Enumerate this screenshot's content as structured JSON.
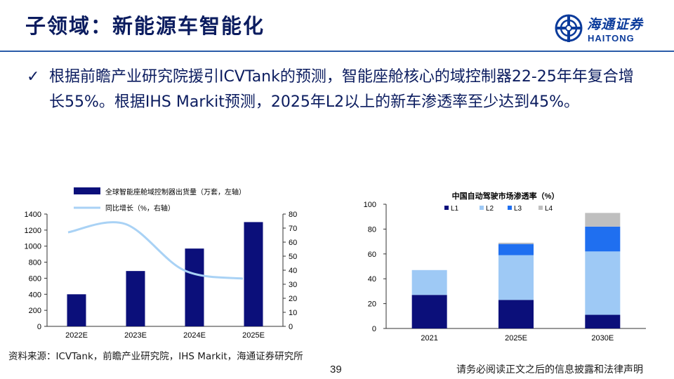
{
  "header": {
    "title": "子领域：新能源车智能化",
    "logo_cn": "海通证券",
    "logo_en": "HAITONG"
  },
  "bullet": {
    "check": "✓",
    "text": "根据前瞻产业研究院援引ICVTank的预测，智能座舱核心的域控制器22-25年年复合增长55%。根据IHS Markit预测，2025年L2以上的新车渗透率至少达到45%。"
  },
  "footer": {
    "source": "资料来源：ICVTank，前瞻产业研究院，IHS Markit，海通证券研究所",
    "page_number": "39",
    "disclaimer": "请务必阅读正文之后的信息披露和法律声明"
  },
  "colors": {
    "navy": "#0b0f7a",
    "light_blue": "#9ec9f5",
    "bright_blue": "#1f6ff0",
    "gray": "#bfbfbf",
    "line_blue": "#a9d2f5"
  },
  "chart_data": [
    {
      "type": "bar+line",
      "title": "",
      "categories": [
        "2022E",
        "2023E",
        "2024E",
        "2025E"
      ],
      "series": [
        {
          "name": "全球智能座舱域控制器出货量（万套，左轴）",
          "kind": "bar",
          "axis": "left",
          "values": [
            400,
            690,
            970,
            1300
          ]
        },
        {
          "name": "同比增长（%，右轴）",
          "kind": "line",
          "axis": "right",
          "values": [
            67,
            73,
            40,
            34
          ]
        }
      ],
      "y_left": {
        "min": 0,
        "max": 1400,
        "ticks": [
          "0",
          "200",
          "400",
          "600",
          "800",
          "1000",
          "1200",
          "1400"
        ]
      },
      "y_right": {
        "min": 0,
        "max": 80,
        "ticks": [
          "0",
          "10",
          "20",
          "30",
          "40",
          "50",
          "60",
          "70",
          "80"
        ]
      },
      "grid": false,
      "legend": "top"
    },
    {
      "type": "stacked-bar",
      "title": "中国自动驾驶市场渗透率（%）",
      "categories": [
        "2021",
        "2025E",
        "2030E"
      ],
      "series": [
        {
          "name": "L1",
          "values": [
            27,
            23,
            11
          ]
        },
        {
          "name": "L2",
          "values": [
            20,
            36,
            51
          ]
        },
        {
          "name": "L3",
          "values": [
            0,
            9,
            20
          ]
        },
        {
          "name": "L4",
          "values": [
            0,
            1,
            11
          ]
        }
      ],
      "ylim": [
        0,
        100
      ],
      "y_ticks": [
        "0",
        "20",
        "40",
        "60",
        "80",
        "100"
      ],
      "grid": false,
      "legend": "top"
    }
  ]
}
